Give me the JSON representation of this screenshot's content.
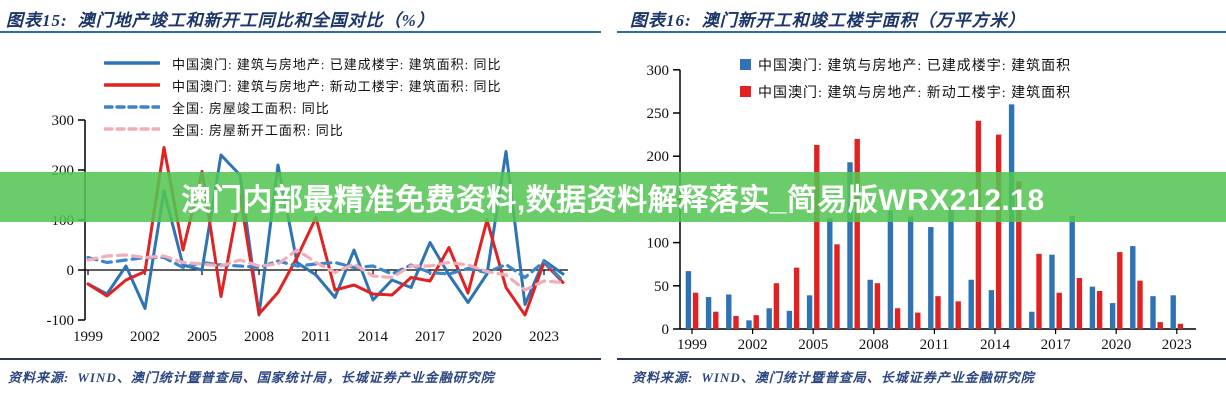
{
  "banner": {
    "text": "澳门内部最精准免费资料,数据资料解释落实_简易版WRX212.18"
  },
  "colors": {
    "title": "#1c3668",
    "rule": "#2e6da4",
    "frule": "#2a3950",
    "footer": "#2c4782",
    "banner_bg": "rgba(84,197,84,0.87)",
    "banner_text": "#ffffff"
  },
  "left_panel": {
    "title_label": "图表15:",
    "title_text": "澳门地产竣工和新开工同比和全国对比（%）",
    "source_label": "资料来源:",
    "source_text": "WIND、澳门统计暨普查局、国家统计局，长城证券产业金融研究院",
    "chart_data": {
      "type": "line",
      "x": [
        1999,
        2000,
        2001,
        2002,
        2003,
        2004,
        2005,
        2006,
        2007,
        2008,
        2009,
        2010,
        2011,
        2012,
        2013,
        2014,
        2015,
        2016,
        2017,
        2018,
        2019,
        2020,
        2021,
        2022,
        2023,
        2024
      ],
      "x_ticks": [
        1999,
        2002,
        2005,
        2008,
        2011,
        2014,
        2017,
        2020,
        2023
      ],
      "ylim": [
        -100,
        300
      ],
      "yticks": [
        -100,
        0,
        100,
        200,
        300
      ],
      "grid": false,
      "legend_position": "top-left",
      "series": [
        {
          "name": "中国澳门: 建筑与房地产: 已建成楼宇: 建筑面积: 同比",
          "color": "#2E74B5",
          "style": "solid",
          "values": [
            -28,
            -48,
            8,
            -77,
            158,
            10,
            0,
            230,
            190,
            -90,
            210,
            15,
            -10,
            -55,
            40,
            -60,
            -20,
            -35,
            55,
            -10,
            -65,
            -8,
            237,
            -69,
            19,
            -8
          ]
        },
        {
          "name": "中国澳门: 建筑与房地产: 新动工楼宇: 建筑面积: 同比",
          "color": "#E02222",
          "style": "solid",
          "values": [
            -28,
            -52,
            -20,
            -3,
            245,
            40,
            197,
            -53,
            150,
            -88,
            -45,
            25,
            105,
            -40,
            -30,
            -48,
            -50,
            -15,
            -22,
            45,
            -46,
            100,
            -35,
            -90,
            15,
            -25
          ]
        },
        {
          "name": "全国: 房屋竣工面积: 同比",
          "color": "#3B86C8",
          "style": "dashed",
          "values": [
            25,
            15,
            20,
            25,
            25,
            5,
            15,
            10,
            8,
            5,
            18,
            8,
            12,
            15,
            5,
            8,
            -8,
            10,
            -5,
            -8,
            3,
            -5,
            11,
            -15,
            17,
            -22
          ]
        },
        {
          "name": "全国: 房屋新开工面积: 同比",
          "color": "#F2AEB8",
          "style": "dashed",
          "values": [
            20,
            28,
            30,
            25,
            28,
            15,
            12,
            8,
            20,
            8,
            12,
            40,
            15,
            -5,
            12,
            -12,
            -15,
            8,
            8,
            15,
            10,
            -3,
            -10,
            -40,
            -22,
            -25
          ]
        }
      ]
    }
  },
  "right_panel": {
    "title_label": "图表16:",
    "title_text": "澳门新开工和竣工楼宇面积（万平方米）",
    "source_label": "资料来源:",
    "source_text": "WIND、澳门统计暨普查局、长城证券产业金融研究院",
    "chart_data": {
      "type": "bar",
      "categories": [
        1999,
        2000,
        2001,
        2002,
        2003,
        2004,
        2005,
        2006,
        2007,
        2008,
        2009,
        2010,
        2011,
        2012,
        2013,
        2014,
        2015,
        2016,
        2017,
        2018,
        2019,
        2020,
        2021,
        2022,
        2023
      ],
      "x_ticks": [
        1999,
        2002,
        2005,
        2008,
        2011,
        2014,
        2017,
        2020,
        2023
      ],
      "ylim": [
        0,
        300
      ],
      "yticks": [
        0,
        50,
        100,
        150,
        200,
        250,
        300
      ],
      "grid": false,
      "legend_position": "top-center",
      "series": [
        {
          "name": "中国澳门: 建筑与房地产: 已建成楼宇: 建筑面积",
          "color": "#2E74B5",
          "values": [
            67,
            37,
            40,
            10,
            24,
            21,
            39,
            128,
            193,
            57,
            137,
            130,
            118,
            141,
            57,
            45,
            260,
            20,
            86,
            131,
            49,
            30,
            96,
            38,
            39
          ]
        },
        {
          "name": "中国澳门: 建筑与房地产: 新动工楼宇: 建筑面积",
          "color": "#E02222",
          "values": [
            42,
            20,
            15,
            16,
            53,
            71,
            213,
            98,
            220,
            53,
            24,
            19,
            38,
            32,
            241,
            225,
            171,
            87,
            42,
            59,
            44,
            89,
            56,
            8,
            6
          ]
        }
      ]
    }
  }
}
